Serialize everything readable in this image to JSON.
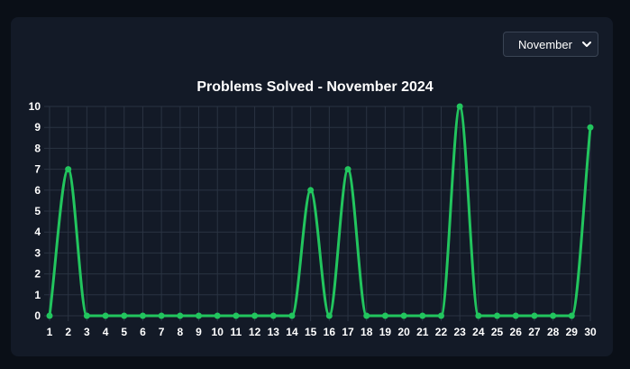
{
  "dropdown": {
    "selected": "November"
  },
  "chart_data": {
    "type": "line",
    "title": "Problems Solved - November 2024",
    "xlabel": "",
    "ylabel": "",
    "x": [
      1,
      2,
      3,
      4,
      5,
      6,
      7,
      8,
      9,
      10,
      11,
      12,
      13,
      14,
      15,
      16,
      17,
      18,
      19,
      20,
      21,
      22,
      23,
      24,
      25,
      26,
      27,
      28,
      29,
      30
    ],
    "series": [
      {
        "values": [
          0,
          7,
          0,
          0,
          0,
          0,
          0,
          0,
          0,
          0,
          0,
          0,
          0,
          0,
          6,
          0,
          7,
          0,
          0,
          0,
          0,
          0,
          10,
          0,
          0,
          0,
          0,
          0,
          0,
          9
        ]
      }
    ],
    "ylim": [
      0,
      10
    ],
    "yticks": [
      0,
      1,
      2,
      3,
      4,
      5,
      6,
      7,
      8,
      9,
      10
    ],
    "grid": true,
    "line_color": "#22c55e",
    "grid_color": "#2a3342"
  }
}
